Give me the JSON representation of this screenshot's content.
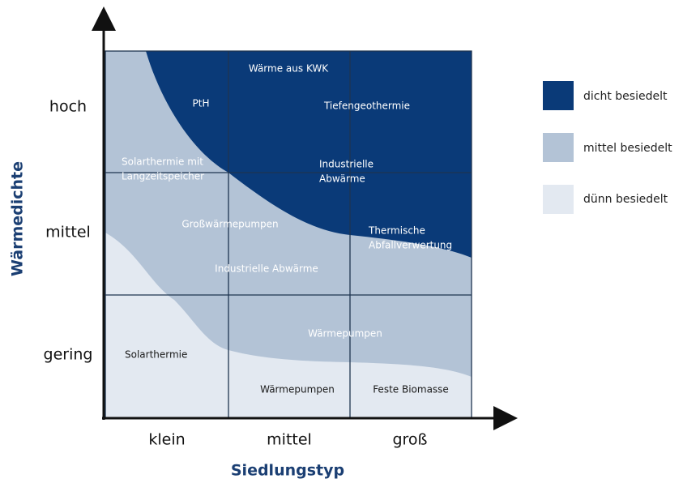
{
  "axes": {
    "y_label": "Wärmedichte",
    "x_label": "Siedlungstyp",
    "y_ticks": [
      "hoch",
      "mittel",
      "gering"
    ],
    "x_ticks": [
      "klein",
      "mittel",
      "groß"
    ]
  },
  "labels": {
    "dense": [
      "Wärme aus KWK",
      "PtH",
      "Tiefengeothermie",
      [
        "Industrielle",
        "Abwärme"
      ],
      [
        "Thermische",
        "Abfallverwertung"
      ]
    ],
    "medium": [
      [
        "Solarthermie mit",
        "Langzeitspeicher"
      ],
      "Großwärmepumpen",
      "Industrielle Abwärme",
      "Wärmepumpen"
    ],
    "sparse": [
      "Solarthermie",
      "Wärmepumpen",
      "Feste Biomasse"
    ]
  },
  "legend": [
    "dicht besiedelt",
    "mittel besiedelt",
    "dünn besiedelt"
  ]
}
